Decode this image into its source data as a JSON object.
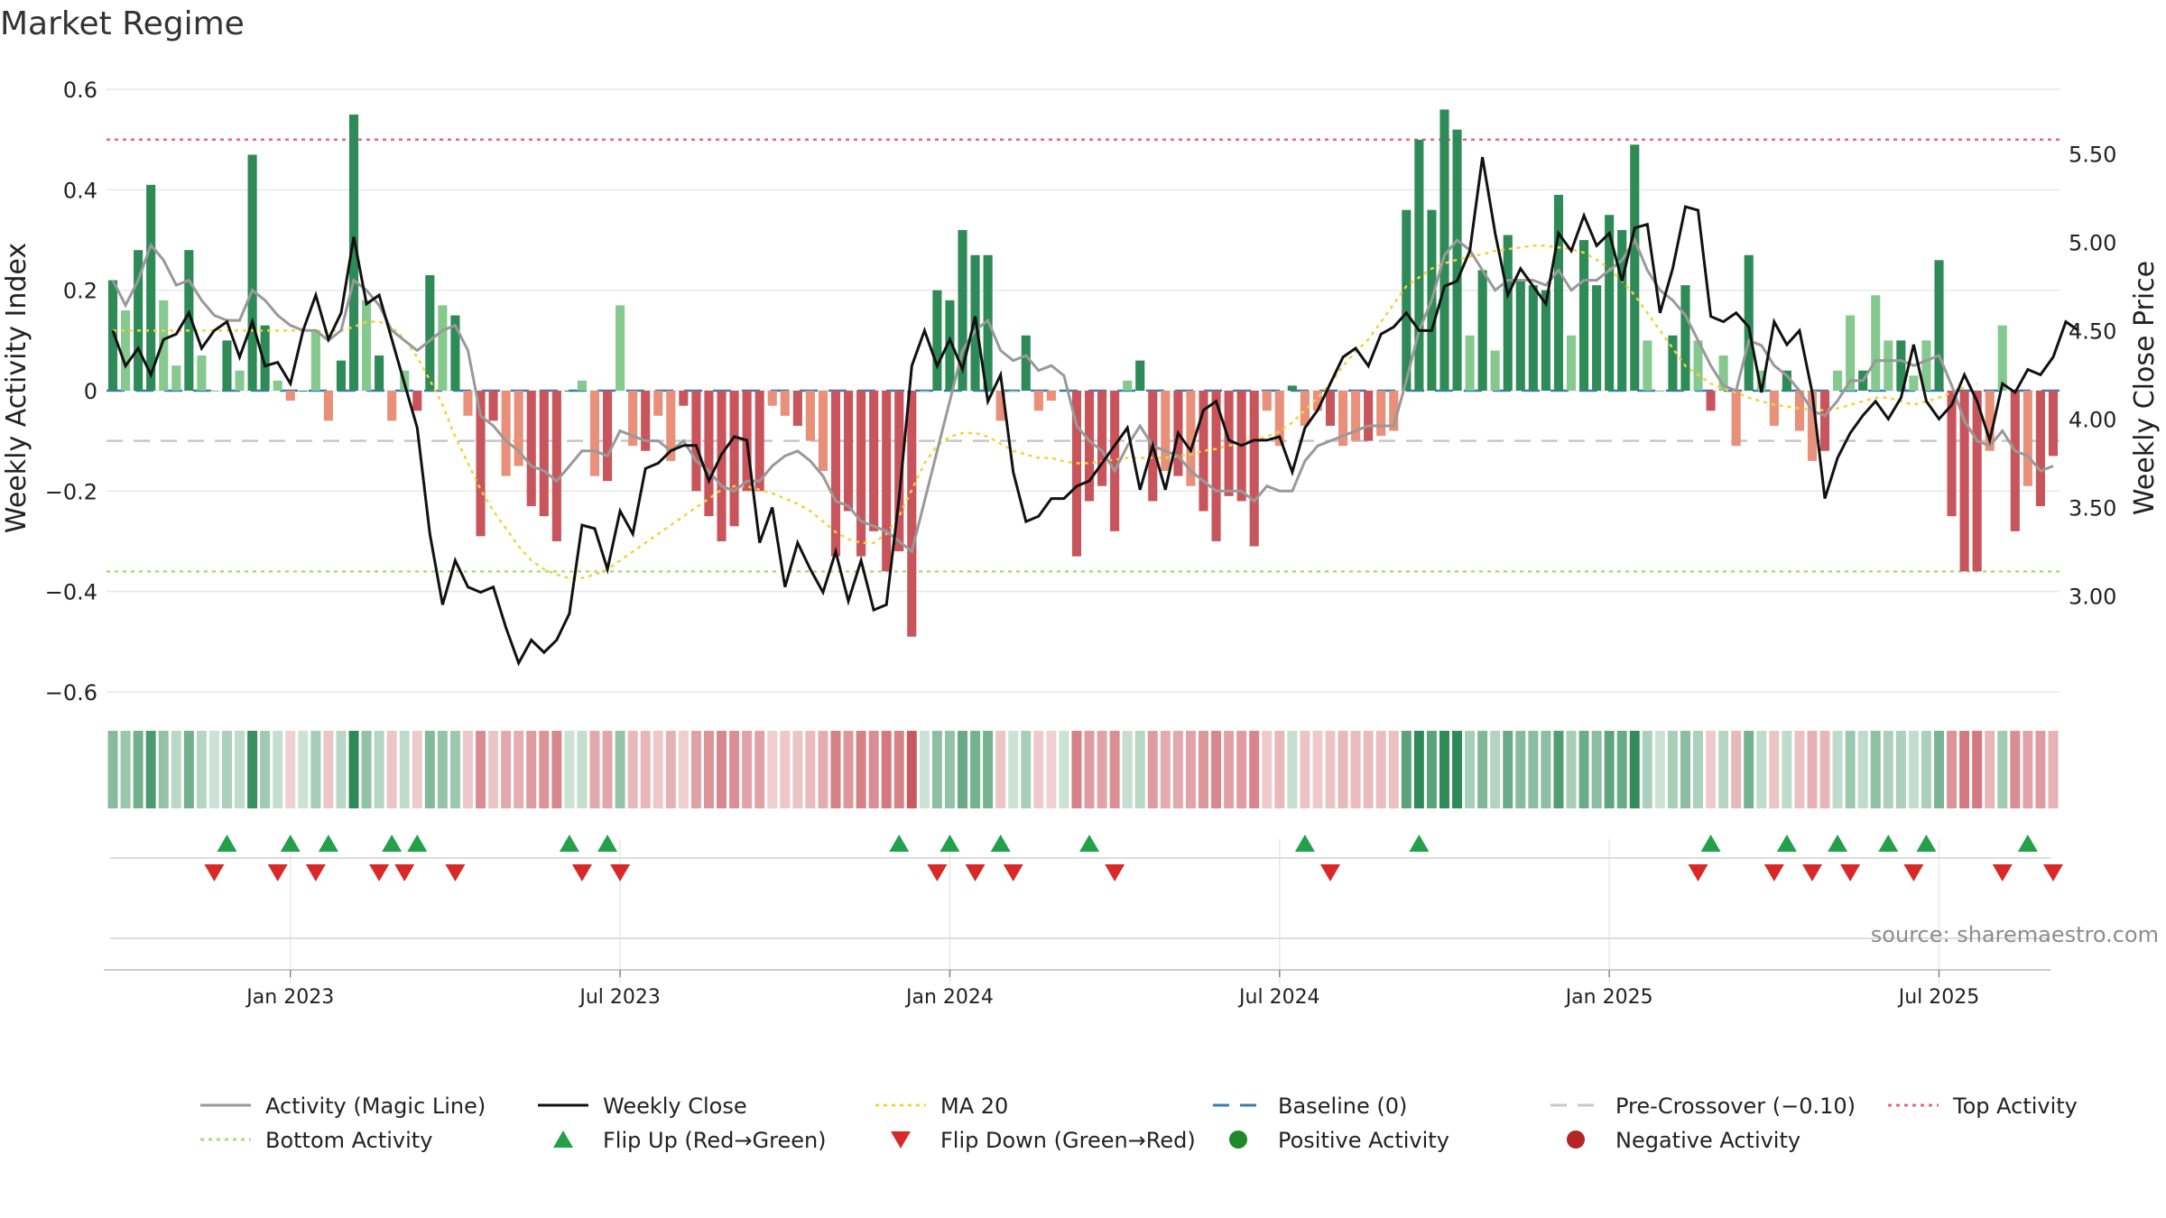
{
  "chart_data": {
    "type": "bar",
    "title": "Market Regime",
    "ylabel_left": "Weekly Activity Index",
    "ylabel_right": "Weekly Close Price",
    "source": "source: sharemaestro.com",
    "yticks_left": [
      "0.6",
      "0.4",
      "0.2",
      "0",
      "−0.2",
      "−0.4",
      "−0.6"
    ],
    "yticks_left_values": [
      0.6,
      0.4,
      0.2,
      0,
      -0.2,
      -0.4,
      -0.6
    ],
    "ylim_left": [
      -0.62,
      0.62
    ],
    "yticks_right": [
      "5.50",
      "5.00",
      "4.50",
      "4.00",
      "3.50",
      "3.00"
    ],
    "yticks_right_values": [
      5.5,
      5.0,
      4.5,
      4.0,
      3.5,
      3.0
    ],
    "ylim_right": [
      2.4,
      5.92
    ],
    "xticks": [
      "Jan 2023",
      "Jul 2023",
      "Jan 2024",
      "Jul 2024",
      "Jan 2025",
      "Jul 2025"
    ],
    "xticks_weeks": [
      14,
      40,
      66,
      92,
      118,
      144
    ],
    "baseline": 0,
    "pre_crossover": -0.1,
    "top_activity": 0.5,
    "bottom_activity": -0.36,
    "series": {
      "activity": [
        0.22,
        0.16,
        0.28,
        0.41,
        0.18,
        0.05,
        0.28,
        0.07,
        0,
        0.1,
        0.04,
        0.47,
        0.13,
        0.02,
        -0.02,
        0,
        0.12,
        -0.06,
        0.06,
        0.55,
        0.18,
        0.07,
        -0.06,
        0.04,
        -0.04,
        0.23,
        0.17,
        0.15,
        -0.05,
        -0.29,
        -0.06,
        -0.17,
        -0.15,
        -0.23,
        -0.25,
        -0.3,
        0,
        0.02,
        -0.17,
        -0.18,
        0.17,
        -0.11,
        -0.12,
        -0.05,
        -0.14,
        -0.03,
        -0.2,
        -0.25,
        -0.3,
        -0.27,
        -0.2,
        -0.2,
        -0.03,
        -0.05,
        -0.07,
        -0.1,
        -0.16,
        -0.33,
        -0.24,
        -0.33,
        -0.28,
        -0.36,
        -0.32,
        -0.49,
        0,
        0.2,
        0.18,
        0.32,
        0.27,
        0.27,
        -0.06,
        0,
        0.11,
        -0.04,
        -0.02,
        0,
        -0.33,
        -0.22,
        -0.19,
        -0.28,
        0.02,
        0.06,
        -0.22,
        -0.16,
        -0.17,
        -0.19,
        -0.24,
        -0.3,
        -0.21,
        -0.22,
        -0.31,
        -0.04,
        -0.11,
        0.01,
        -0.07,
        -0.04,
        -0.07,
        -0.11,
        -0.1,
        -0.1,
        -0.09,
        -0.08,
        0.36,
        0.5,
        0.36,
        0.56,
        0.52,
        0.11,
        0.24,
        0.08,
        0.31,
        0.22,
        0.21,
        0.2,
        0.39,
        0.11,
        0.3,
        0.21,
        0.35,
        0.32,
        0.49,
        0.1,
        0,
        0.11,
        0.21,
        0.1,
        -0.04,
        0.07,
        -0.11,
        0.27,
        0.04,
        -0.07,
        0.04,
        -0.08,
        -0.14,
        -0.12,
        0.04,
        0.15,
        0.04,
        0.19,
        0.1,
        0.1,
        0.03,
        0.1,
        0.26,
        -0.25,
        -0.36,
        -0.36,
        -0.12,
        0.13,
        -0.28,
        -0.19,
        -0.23,
        -0.13
      ],
      "magic_line": [
        0.22,
        0.17,
        0.22,
        0.29,
        0.26,
        0.21,
        0.22,
        0.18,
        0.15,
        0.14,
        0.14,
        0.2,
        0.18,
        0.15,
        0.13,
        0.12,
        0.12,
        0.1,
        0.12,
        0.22,
        0.2,
        0.17,
        0.12,
        0.1,
        0.08,
        0.1,
        0.12,
        0.13,
        0.08,
        -0.05,
        -0.07,
        -0.1,
        -0.12,
        -0.15,
        -0.16,
        -0.18,
        -0.15,
        -0.12,
        -0.12,
        -0.13,
        -0.08,
        -0.09,
        -0.1,
        -0.1,
        -0.12,
        -0.1,
        -0.14,
        -0.16,
        -0.19,
        -0.2,
        -0.18,
        -0.18,
        -0.15,
        -0.13,
        -0.12,
        -0.14,
        -0.17,
        -0.22,
        -0.23,
        -0.26,
        -0.27,
        -0.28,
        -0.3,
        -0.32,
        -0.22,
        -0.12,
        -0.02,
        0.08,
        0.12,
        0.14,
        0.08,
        0.06,
        0.07,
        0.04,
        0.05,
        0.03,
        -0.07,
        -0.1,
        -0.12,
        -0.16,
        -0.11,
        -0.07,
        -0.11,
        -0.12,
        -0.13,
        -0.16,
        -0.18,
        -0.2,
        -0.2,
        -0.2,
        -0.22,
        -0.19,
        -0.2,
        -0.2,
        -0.14,
        -0.11,
        -0.1,
        -0.09,
        -0.08,
        -0.07,
        -0.07,
        -0.07,
        0.02,
        0.12,
        0.18,
        0.27,
        0.3,
        0.28,
        0.24,
        0.2,
        0.22,
        0.22,
        0.22,
        0.21,
        0.24,
        0.2,
        0.22,
        0.22,
        0.24,
        0.26,
        0.3,
        0.24,
        0.2,
        0.18,
        0.15,
        0.1,
        0.05,
        0.01,
        0.0,
        0.1,
        0.09,
        0.05,
        0.03,
        0.0,
        -0.04,
        -0.05,
        -0.02,
        0.02,
        0.02,
        0.06,
        0.06,
        0.06,
        0.05,
        0.06,
        0.07,
        0.01,
        -0.06,
        -0.1,
        -0.11,
        -0.08,
        -0.12,
        -0.13,
        -0.16,
        -0.15
      ],
      "weekly_close": [
        4.5,
        4.3,
        4.4,
        4.25,
        4.45,
        4.48,
        4.6,
        4.4,
        4.5,
        4.55,
        4.35,
        4.55,
        4.3,
        4.32,
        4.2,
        4.5,
        4.7,
        4.45,
        4.6,
        5.03,
        4.65,
        4.7,
        4.45,
        4.2,
        3.95,
        3.35,
        2.95,
        3.2,
        3.05,
        3.02,
        3.05,
        2.82,
        2.62,
        2.75,
        2.68,
        2.75,
        2.9,
        3.4,
        3.38,
        3.15,
        3.48,
        3.35,
        3.72,
        3.75,
        3.82,
        3.85,
        3.85,
        3.65,
        3.8,
        3.9,
        3.88,
        3.3,
        3.5,
        3.05,
        3.3,
        3.15,
        3.02,
        3.25,
        2.97,
        3.2,
        2.92,
        2.95,
        3.55,
        4.3,
        4.5,
        4.3,
        4.45,
        4.28,
        4.58,
        4.1,
        4.25,
        3.7,
        3.42,
        3.45,
        3.55,
        3.55,
        3.62,
        3.65,
        3.75,
        3.85,
        3.95,
        3.6,
        3.85,
        3.6,
        3.92,
        3.82,
        4.05,
        4.1,
        3.88,
        3.85,
        3.88,
        3.88,
        3.9,
        3.7,
        3.95,
        4.05,
        4.2,
        4.35,
        4.4,
        4.3,
        4.48,
        4.52,
        4.6,
        4.5,
        4.5,
        4.75,
        4.78,
        4.95,
        5.48,
        5.05,
        4.7,
        4.85,
        4.75,
        4.65,
        5.05,
        4.95,
        5.15,
        4.98,
        5.05,
        4.78,
        5.08,
        5.1,
        4.6,
        4.85,
        5.2,
        5.18,
        4.58,
        4.55,
        4.6,
        4.52,
        4.15,
        4.55,
        4.42,
        4.5,
        4.15,
        3.55,
        3.78,
        3.92,
        4.02,
        4.1,
        4.0,
        4.12,
        4.42,
        4.1,
        4.0,
        4.08,
        4.25,
        4.1,
        3.88,
        4.2,
        4.15,
        4.28,
        4.25,
        4.35,
        4.55,
        4.5
      ],
      "ma20": [
        4.5,
        4.5,
        4.5,
        4.5,
        4.5,
        4.5,
        4.5,
        4.5,
        4.5,
        4.5,
        4.5,
        4.5,
        4.5,
        4.5,
        4.5,
        4.5,
        4.5,
        4.5,
        4.5,
        4.52,
        4.55,
        4.55,
        4.52,
        4.45,
        4.35,
        4.22,
        4.08,
        3.9,
        3.75,
        3.6,
        3.48,
        3.38,
        3.28,
        3.2,
        3.15,
        3.12,
        3.1,
        3.1,
        3.12,
        3.15,
        3.2,
        3.25,
        3.3,
        3.35,
        3.4,
        3.45,
        3.5,
        3.55,
        3.6,
        3.62,
        3.62,
        3.6,
        3.58,
        3.55,
        3.52,
        3.48,
        3.42,
        3.36,
        3.32,
        3.3,
        3.3,
        3.35,
        3.45,
        3.6,
        3.75,
        3.85,
        3.9,
        3.92,
        3.92,
        3.9,
        3.86,
        3.82,
        3.8,
        3.78,
        3.78,
        3.76,
        3.75,
        3.75,
        3.76,
        3.77,
        3.78,
        3.78,
        3.78,
        3.78,
        3.79,
        3.8,
        3.82,
        3.83,
        3.85,
        3.86,
        3.88,
        3.9,
        3.93,
        3.98,
        4.05,
        4.12,
        4.2,
        4.3,
        4.38,
        4.45,
        4.55,
        4.65,
        4.75,
        4.8,
        4.85,
        4.88,
        4.9,
        4.92,
        4.93,
        4.95,
        4.96,
        4.97,
        4.98,
        4.98,
        4.97,
        4.96,
        4.94,
        4.9,
        4.85,
        4.78,
        4.7,
        4.6,
        4.5,
        4.4,
        4.3,
        4.25,
        4.2,
        4.17,
        4.15,
        4.12,
        4.1,
        4.08,
        4.07,
        4.06,
        4.05,
        4.05,
        4.06,
        4.08,
        4.1,
        4.12,
        4.12,
        4.1,
        4.08,
        4.1,
        4.12,
        4.15,
        4.18,
        4.2
      ],
      "band": [
        0.22,
        0.16,
        0.28,
        0.41,
        0.18,
        0.05,
        0.28,
        0.07,
        0,
        0.1,
        0.04,
        0.47,
        0.13,
        0.02,
        -0.02,
        0,
        0.12,
        -0.06,
        0.06,
        0.55,
        0.18,
        0.07,
        -0.06,
        0.04,
        -0.04,
        0.23,
        0.17,
        0.15,
        -0.05,
        -0.29,
        -0.06,
        -0.17,
        -0.15,
        -0.23,
        -0.25,
        -0.3,
        0,
        0.02,
        -0.17,
        -0.18,
        0.17,
        -0.11,
        -0.12,
        -0.05,
        -0.14,
        -0.03,
        -0.2,
        -0.25,
        -0.3,
        -0.27,
        -0.2,
        -0.2,
        -0.03,
        -0.05,
        -0.07,
        -0.1,
        -0.16,
        -0.33,
        -0.24,
        -0.33,
        -0.28,
        -0.36,
        -0.32,
        -0.49,
        0,
        0.2,
        0.18,
        0.32,
        0.27,
        0.27,
        -0.06,
        0,
        0.11,
        -0.04,
        -0.02,
        0,
        -0.33,
        -0.22,
        -0.19,
        -0.28,
        0.02,
        0.06,
        -0.22,
        -0.16,
        -0.17,
        -0.19,
        -0.24,
        -0.3,
        -0.21,
        -0.22,
        -0.31,
        -0.04,
        -0.11,
        0.01,
        -0.07,
        -0.04,
        -0.07,
        -0.11,
        -0.1,
        -0.1,
        -0.09,
        -0.08,
        0.36,
        0.5,
        0.36,
        0.56,
        0.52,
        0.11,
        0.24,
        0.08,
        0.31,
        0.22,
        0.21,
        0.2,
        0.39,
        0.11,
        0.3,
        0.21,
        0.35,
        0.32,
        0.49,
        0.1,
        0,
        0.11,
        0.21,
        0.1,
        -0.04,
        0.07,
        -0.11,
        0.27,
        0.04,
        -0.07,
        0.04,
        -0.08,
        -0.14,
        -0.12,
        0.04,
        0.15,
        0.04,
        0.19,
        0.1,
        0.1,
        0.03,
        0.1,
        0.26,
        -0.25,
        -0.36,
        -0.36,
        -0.12,
        0.13,
        -0.28,
        -0.19,
        -0.23,
        -0.13
      ],
      "flip_up_weeks": [
        9,
        14,
        17,
        22,
        24,
        36,
        39,
        62,
        66,
        70,
        77,
        94,
        103,
        126,
        132,
        136,
        140,
        143,
        151
      ],
      "flip_down_weeks": [
        8,
        13,
        16,
        21,
        23,
        27,
        37,
        40,
        65,
        68,
        71,
        79,
        96,
        125,
        131,
        134,
        137,
        142,
        149,
        153
      ]
    },
    "legend": [
      {
        "label": "Activity (Magic Line)",
        "kind": "line",
        "color": "#999999"
      },
      {
        "label": "Weekly Close",
        "kind": "line",
        "color": "#111111"
      },
      {
        "label": "MA 20",
        "kind": "dotted",
        "color": "#f2d33a"
      },
      {
        "label": "Baseline (0)",
        "kind": "dashed",
        "color": "#3b7bb5"
      },
      {
        "label": "Pre-Crossover (−0.10)",
        "kind": "dashed",
        "color": "#c8c8c8"
      },
      {
        "label": "Top Activity",
        "kind": "dotted",
        "color": "#e36a7a"
      },
      {
        "label": "Bottom Activity",
        "kind": "dotted",
        "color": "#a9dd7e"
      },
      {
        "label": "Flip Up (Red→Green)",
        "kind": "tri-up",
        "color": "#22a04a"
      },
      {
        "label": "Flip Down (Green→Red)",
        "kind": "tri-down",
        "color": "#d92828"
      },
      {
        "label": "Positive Activity",
        "kind": "dot",
        "color": "#1f8a2a"
      },
      {
        "label": "Negative Activity",
        "kind": "dot",
        "color": "#b52525"
      }
    ],
    "colors": {
      "pos_strong": "#2e8a57",
      "pos_light": "#86c98f",
      "neg_strong": "#c8555c",
      "neg_light": "#e8907a",
      "grid": "#e8e8e8"
    }
  }
}
